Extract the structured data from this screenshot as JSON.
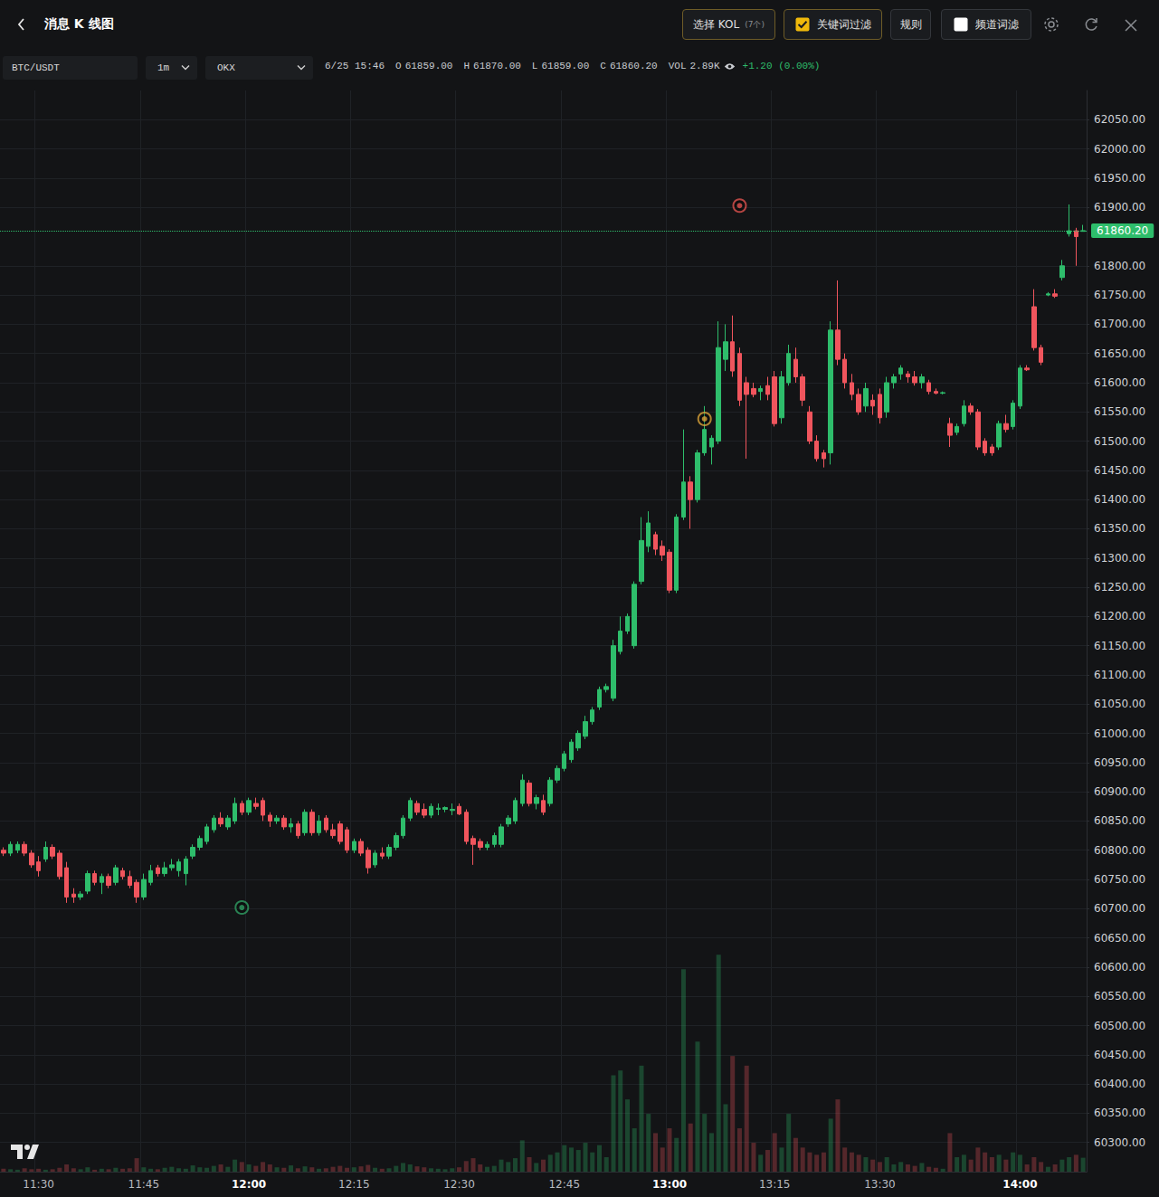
{
  "header": {
    "title": "消息 K 线图",
    "kol_button": "选择 KOL",
    "kol_count": "(7个)",
    "keyword_filter": {
      "label": "关键词过滤",
      "checked": true
    },
    "rules": "规则",
    "channel_filter": {
      "label": "频道词滤",
      "checked": false
    }
  },
  "toolbar": {
    "symbol": "BTC/USDT",
    "interval": "1m",
    "exchange": "OKX",
    "time": "6/25 15:46",
    "ohlc": [
      {
        "label": "O",
        "value": "61859.00"
      },
      {
        "label": "H",
        "value": "61870.00"
      },
      {
        "label": "L",
        "value": "61859.00"
      },
      {
        "label": "C",
        "value": "61860.20"
      }
    ],
    "vol_label": "VOL",
    "vol": "2.89K",
    "change": "+1.20 (0.00%)"
  },
  "chart_data": {
    "type": "candlestick",
    "grid": true,
    "categories": [
      null,
      null,
      null,
      null,
      null,
      "11:30",
      null,
      null,
      null,
      null,
      null,
      null,
      null,
      null,
      null,
      null,
      null,
      null,
      null,
      null,
      "11:45",
      null,
      null,
      null,
      null,
      null,
      null,
      null,
      null,
      null,
      null,
      null,
      null,
      null,
      null,
      "12:00",
      null,
      null,
      null,
      null,
      null,
      null,
      null,
      null,
      null,
      null,
      null,
      null,
      null,
      null,
      "12:15",
      null,
      null,
      null,
      null,
      null,
      null,
      null,
      null,
      null,
      null,
      null,
      null,
      null,
      null,
      "12:30",
      null,
      null,
      null,
      null,
      null,
      null,
      null,
      null,
      null,
      null,
      null,
      null,
      null,
      null,
      "12:45",
      null,
      null,
      null,
      null,
      null,
      null,
      null,
      null,
      null,
      null,
      null,
      null,
      null,
      null,
      "13:00",
      null,
      null,
      null,
      null,
      null,
      null,
      null,
      null,
      null,
      null,
      null,
      null,
      null,
      null,
      "13:15",
      null,
      null,
      null,
      null,
      null,
      null,
      null,
      null,
      null,
      null,
      null,
      null,
      null,
      null,
      "13:30",
      null,
      null,
      null,
      null,
      null,
      null,
      null,
      null,
      null,
      null,
      null,
      null,
      null,
      null,
      null,
      null,
      null,
      null,
      null,
      "14:00",
      null,
      null,
      null,
      null,
      null,
      null,
      null,
      null,
      null
    ],
    "open": [
      60800,
      60795,
      60800,
      60810,
      60795,
      60780,
      60785,
      60805,
      60795,
      60770,
      60725,
      60720,
      60730,
      60760,
      60745,
      60755,
      60745,
      60765,
      60755,
      60745,
      60720,
      60745,
      60770,
      60760,
      60770,
      60765,
      60760,
      60790,
      60805,
      60815,
      60835,
      60855,
      60840,
      60850,
      60880,
      60865,
      60880,
      60885,
      60860,
      60850,
      60855,
      60840,
      60845,
      60830,
      60865,
      60830,
      60855,
      60835,
      60845,
      60835,
      60800,
      60815,
      60800,
      60775,
      60795,
      60790,
      60805,
      60825,
      60855,
      60880,
      60870,
      60860,
      60870,
      60870,
      60868,
      60875,
      60865,
      60820,
      60815,
      60805,
      60810,
      60810,
      60845,
      60850,
      60880,
      60915,
      60880,
      60885,
      60880,
      60920,
      60940,
      60955,
      60975,
      60995,
      61020,
      61045,
      61075,
      61060,
      61140,
      61175,
      61150,
      61260,
      61320,
      61340,
      61320,
      61310,
      61245,
      61370,
      61430,
      61400,
      61480,
      61490,
      61500,
      61640,
      61670,
      61650,
      61600,
      61590,
      61585,
      61595,
      61610,
      61540,
      61600,
      61640,
      61610,
      61550,
      61500,
      61480,
      61480,
      61690,
      61640,
      61600,
      61580,
      61560,
      61570,
      61580,
      61550,
      61600,
      61615,
      61615,
      61610,
      61600,
      61600,
      61585,
      61582,
      61530,
      61515,
      61530,
      61560,
      61550,
      61500,
      61490,
      61490,
      61530,
      61525,
      61560,
      61625,
      61730,
      61660,
      61750,
      61752,
      61780,
      61855,
      61860,
      61859
    ],
    "high": [
      60805,
      60815,
      60815,
      60815,
      60800,
      60790,
      60815,
      60810,
      60800,
      60780,
      60735,
      60730,
      60765,
      60765,
      60760,
      60760,
      60775,
      60770,
      60765,
      60750,
      60760,
      60775,
      60775,
      60780,
      60785,
      60785,
      60790,
      60810,
      60825,
      60845,
      60860,
      60865,
      60860,
      60890,
      60885,
      60890,
      60890,
      60890,
      60865,
      60860,
      60860,
      60855,
      60850,
      60870,
      60870,
      60860,
      60860,
      60845,
      60850,
      60840,
      60820,
      60820,
      60805,
      60800,
      60805,
      60810,
      60830,
      60860,
      60890,
      60885,
      60880,
      60880,
      60880,
      60875,
      60880,
      60880,
      60870,
      60825,
      60820,
      60815,
      60830,
      60845,
      60860,
      60890,
      60930,
      60920,
      60895,
      60895,
      60925,
      60945,
      60970,
      60990,
      61005,
      61030,
      61045,
      61080,
      61085,
      61160,
      61200,
      61205,
      61260,
      61370,
      61380,
      61345,
      61330,
      61315,
      61375,
      61520,
      61440,
      61485,
      61560,
      61510,
      61705,
      61700,
      61715,
      61660,
      61610,
      61600,
      61595,
      61610,
      61620,
      61620,
      61665,
      61660,
      61615,
      61560,
      61510,
      61485,
      61705,
      61775,
      61650,
      61615,
      61590,
      61600,
      61580,
      61590,
      61610,
      61615,
      61630,
      61620,
      61620,
      61615,
      61605,
      61590,
      61585,
      61540,
      61530,
      61570,
      61565,
      61555,
      61505,
      61495,
      61535,
      61545,
      61570,
      61630,
      61630,
      61760,
      61665,
      61755,
      61760,
      61810,
      61905,
      61865,
      61870
    ],
    "low": [
      60790,
      60790,
      60795,
      60790,
      60770,
      60755,
      60780,
      60785,
      60750,
      60710,
      60710,
      60715,
      60725,
      60740,
      60725,
      60735,
      60740,
      60750,
      60735,
      60710,
      60715,
      60740,
      60755,
      60755,
      60765,
      60755,
      60740,
      60785,
      60800,
      60810,
      60830,
      60840,
      60835,
      60845,
      60860,
      60860,
      60870,
      60850,
      60840,
      60845,
      60835,
      60830,
      60820,
      60825,
      60825,
      60825,
      60830,
      60820,
      60810,
      60795,
      60795,
      60790,
      60760,
      60770,
      60785,
      60785,
      60800,
      60820,
      60850,
      60860,
      60855,
      60855,
      60860,
      60865,
      60860,
      60860,
      60810,
      60775,
      60800,
      60800,
      60805,
      60805,
      60840,
      60845,
      60875,
      60875,
      60870,
      60860,
      60875,
      60915,
      60935,
      60950,
      60970,
      60990,
      61015,
      61040,
      61070,
      61055,
      61135,
      61170,
      61145,
      61255,
      61310,
      61305,
      61295,
      61240,
      61240,
      61365,
      61350,
      61395,
      61475,
      61460,
      61495,
      61620,
      61610,
      61560,
      61470,
      61575,
      61570,
      61570,
      61525,
      61530,
      61595,
      61600,
      61560,
      61495,
      61465,
      61455,
      61460,
      61630,
      61590,
      61570,
      61545,
      61550,
      61545,
      61530,
      61540,
      61590,
      61605,
      61600,
      61595,
      61590,
      61580,
      61580,
      61580,
      61490,
      61510,
      61525,
      61545,
      61485,
      61475,
      61475,
      61485,
      61515,
      61520,
      61555,
      61620,
      61655,
      61630,
      61748,
      61745,
      61775,
      61850,
      61800,
      61859
    ],
    "close": [
      60795,
      60810,
      60810,
      60795,
      60775,
      60765,
      60805,
      60790,
      60755,
      60720,
      60720,
      60725,
      60760,
      60745,
      60755,
      60740,
      60770,
      60755,
      60740,
      60720,
      60750,
      60765,
      60760,
      60770,
      60775,
      60780,
      60785,
      60805,
      60820,
      60840,
      60855,
      60845,
      60855,
      60880,
      60865,
      60885,
      60875,
      60860,
      60850,
      60855,
      60840,
      60845,
      60825,
      60865,
      60830,
      60850,
      60835,
      60825,
      60815,
      60800,
      60815,
      60795,
      60770,
      60795,
      60790,
      60805,
      60825,
      60855,
      60885,
      60865,
      60860,
      60875,
      60872,
      60873,
      60870,
      60862,
      60815,
      60810,
      60805,
      60810,
      60825,
      60840,
      60855,
      60885,
      60920,
      60880,
      60890,
      60865,
      60920,
      60940,
      60965,
      60985,
      61000,
      61020,
      61040,
      61075,
      61080,
      61150,
      61175,
      61200,
      61255,
      61330,
      61360,
      61315,
      61305,
      61245,
      61370,
      61430,
      61400,
      61480,
      61520,
      61505,
      61660,
      61670,
      61620,
      61570,
      61580,
      61580,
      61590,
      61580,
      61530,
      61610,
      61650,
      61610,
      61570,
      61500,
      61470,
      61470,
      61690,
      61640,
      61600,
      61580,
      61550,
      61590,
      61560,
      61540,
      61600,
      61610,
      61625,
      61610,
      61600,
      61610,
      61585,
      61582,
      61583,
      61510,
      61525,
      61560,
      61550,
      61490,
      61480,
      61480,
      61530,
      61520,
      61565,
      61625,
      61622,
      61660,
      61635,
      61752,
      61748,
      61800,
      61860,
      61850,
      61860.2
    ],
    "volume": [
      600,
      500,
      400,
      700,
      500,
      600,
      400,
      500,
      800,
      1500,
      700,
      500,
      900,
      400,
      600,
      500,
      800,
      600,
      700,
      2800,
      900,
      600,
      500,
      800,
      1000,
      700,
      600,
      1300,
      900,
      800,
      1200,
      1500,
      1000,
      2500,
      2000,
      1500,
      1200,
      2000,
      1500,
      900,
      800,
      1300,
      700,
      1100,
      900,
      600,
      700,
      1000,
      1200,
      800,
      900,
      1100,
      1400,
      800,
      600,
      700,
      1200,
      1800,
      1500,
      1100,
      900,
      700,
      600,
      500,
      700,
      900,
      2200,
      2800,
      1500,
      1000,
      1200,
      2500,
      2000,
      2800,
      6500,
      3000,
      1800,
      2500,
      3500,
      4000,
      5500,
      5000,
      4500,
      6000,
      4000,
      5500,
      3000,
      20000,
      21000,
      15000,
      9000,
      22000,
      12000,
      8000,
      5000,
      9000,
      7000,
      42000,
      10000,
      27000,
      12000,
      8000,
      45000,
      14000,
      24000,
      9000,
      22000,
      6000,
      3500,
      4500,
      8000,
      5000,
      12000,
      7000,
      5000,
      4000,
      3500,
      4000,
      11000,
      15000,
      5000,
      4000,
      3500,
      3000,
      2500,
      2000,
      3000,
      1500,
      2000,
      1500,
      1200,
      1800,
      1000,
      800,
      600,
      8000,
      3000,
      3500,
      2500,
      5000,
      4000,
      3000,
      3500,
      2500,
      4000,
      3500,
      1500,
      3000,
      2000,
      1000,
      1500,
      2500,
      3000,
      3500,
      2890
    ],
    "ylim": [
      60250,
      62100
    ],
    "yticks": [
      {
        "value": 60300,
        "label": "60300.00"
      },
      {
        "value": 60350,
        "label": "60350.00"
      },
      {
        "value": 60400,
        "label": "60400.00"
      },
      {
        "value": 60450,
        "label": "60450.00"
      },
      {
        "value": 60500,
        "label": "60500.00"
      },
      {
        "value": 60550,
        "label": "60550.00"
      },
      {
        "value": 60600,
        "label": "60600.00"
      },
      {
        "value": 60650,
        "label": "60650.00"
      },
      {
        "value": 60700,
        "label": "60700.00"
      },
      {
        "value": 60750,
        "label": "60750.00"
      },
      {
        "value": 60800,
        "label": "60800.00"
      },
      {
        "value": 60850,
        "label": "60850.00"
      },
      {
        "value": 60900,
        "label": "60900.00"
      },
      {
        "value": 60950,
        "label": "60950.00"
      },
      {
        "value": 61000,
        "label": "61000.00"
      },
      {
        "value": 61050,
        "label": "61050.00"
      },
      {
        "value": 61100,
        "label": "61100.00"
      },
      {
        "value": 61150,
        "label": "61150.00"
      },
      {
        "value": 61200,
        "label": "61200.00"
      },
      {
        "value": 61250,
        "label": "61250.00"
      },
      {
        "value": 61300,
        "label": "61300.00"
      },
      {
        "value": 61350,
        "label": "61350.00"
      },
      {
        "value": 61400,
        "label": "61400.00"
      },
      {
        "value": 61450,
        "label": "61450.00"
      },
      {
        "value": 61500,
        "label": "61500.00"
      },
      {
        "value": 61550,
        "label": "61550.00"
      },
      {
        "value": 61600,
        "label": "61600.00"
      },
      {
        "value": 61650,
        "label": "61650.00"
      },
      {
        "value": 61700,
        "label": "61700.00"
      },
      {
        "value": 61750,
        "label": "61750.00"
      },
      {
        "value": 61800,
        "label": "61800.00"
      },
      {
        "value": 61900,
        "label": "61900.00"
      },
      {
        "value": 61950,
        "label": "61950.00"
      },
      {
        "value": 62000,
        "label": "62000.00"
      },
      {
        "value": 62050,
        "label": "62050.00"
      }
    ],
    "volume_ylim": [
      0,
      46000
    ],
    "last_price_label": "61860.20",
    "last_volume_label": "2.89K",
    "markers": [
      {
        "index": 34,
        "value": 60702,
        "color": "#2f9e63"
      },
      {
        "index": 100,
        "value": 61538,
        "color": "#d9a23a"
      },
      {
        "index": 105,
        "value": 61903,
        "color": "#e0524f"
      }
    ]
  }
}
